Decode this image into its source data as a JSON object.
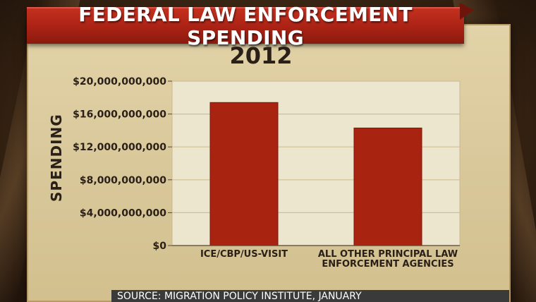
{
  "title": "FEDERAL LAW ENFORCEMENT SPENDING",
  "source": "SOURCE: MIGRATION POLICY INSTITUTE, JANUARY",
  "colors": {
    "bar": "#a82310",
    "banner": "#b1261a",
    "panel": "#ddd0a4"
  },
  "chart_data": {
    "type": "bar",
    "title": "2012",
    "ylabel": "SPENDING",
    "xlabel": "",
    "ylim": [
      0,
      20000000000
    ],
    "yticks": [
      {
        "value": 0,
        "label": "$0"
      },
      {
        "value": 4000000000,
        "label": "$4,000,000,000"
      },
      {
        "value": 8000000000,
        "label": "$8,000,000,000"
      },
      {
        "value": 12000000000,
        "label": "$12,000,000,000"
      },
      {
        "value": 16000000000,
        "label": "$16,000,000,000"
      },
      {
        "value": 20000000000,
        "label": "$20,000,000,000"
      }
    ],
    "categories": [
      [
        "ICE/CBP/US-VISIT"
      ],
      [
        "ALL OTHER PRINCIPAL LAW",
        "ENFORCEMENT AGENCIES"
      ]
    ],
    "values": [
      17400000000,
      14300000000
    ],
    "grid": true,
    "legend": "none"
  }
}
